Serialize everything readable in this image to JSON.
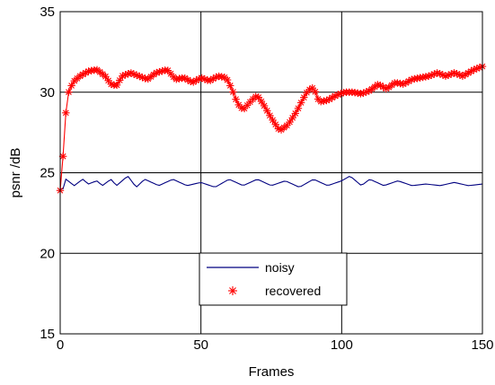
{
  "chart_data": {
    "type": "line",
    "xlabel": "Frames",
    "ylabel": "psnr /dB",
    "xlim": [
      0,
      150
    ],
    "ylim": [
      15,
      35
    ],
    "xticks": [
      0,
      50,
      100,
      150
    ],
    "yticks": [
      15,
      20,
      25,
      30,
      35
    ],
    "grid": true,
    "legend_position": "bottom-center",
    "series": [
      {
        "name": "noisy",
        "color": "#000080",
        "marker": "none",
        "anchors": [
          [
            1,
            24.0
          ],
          [
            2,
            24.6
          ],
          [
            5,
            24.2
          ],
          [
            8,
            24.6
          ],
          [
            10,
            24.3
          ],
          [
            13,
            24.5
          ],
          [
            15,
            24.2
          ],
          [
            18,
            24.6
          ],
          [
            20,
            24.2
          ],
          [
            24,
            24.8
          ],
          [
            27,
            24.1
          ],
          [
            30,
            24.6
          ],
          [
            35,
            24.2
          ],
          [
            40,
            24.6
          ],
          [
            45,
            24.2
          ],
          [
            50,
            24.4
          ],
          [
            55,
            24.1
          ],
          [
            60,
            24.6
          ],
          [
            65,
            24.2
          ],
          [
            70,
            24.6
          ],
          [
            75,
            24.2
          ],
          [
            80,
            24.5
          ],
          [
            85,
            24.1
          ],
          [
            90,
            24.6
          ],
          [
            95,
            24.2
          ],
          [
            100,
            24.5
          ],
          [
            103,
            24.8
          ],
          [
            107,
            24.2
          ],
          [
            110,
            24.6
          ],
          [
            115,
            24.2
          ],
          [
            120,
            24.5
          ],
          [
            125,
            24.2
          ],
          [
            130,
            24.3
          ],
          [
            135,
            24.2
          ],
          [
            140,
            24.4
          ],
          [
            145,
            24.2
          ],
          [
            150,
            24.3
          ]
        ]
      },
      {
        "name": "recovered",
        "color": "#ff0000",
        "marker": "asterisk",
        "anchors": [
          [
            0,
            23.9
          ],
          [
            1,
            26.0
          ],
          [
            2,
            28.7
          ],
          [
            3,
            30.0
          ],
          [
            4,
            30.4
          ],
          [
            5,
            30.7
          ],
          [
            7,
            31.0
          ],
          [
            10,
            31.3
          ],
          [
            13,
            31.4
          ],
          [
            16,
            31.0
          ],
          [
            18,
            30.5
          ],
          [
            20,
            30.4
          ],
          [
            22,
            31.0
          ],
          [
            25,
            31.2
          ],
          [
            28,
            31.0
          ],
          [
            31,
            30.8
          ],
          [
            34,
            31.2
          ],
          [
            38,
            31.4
          ],
          [
            41,
            30.8
          ],
          [
            44,
            30.9
          ],
          [
            47,
            30.6
          ],
          [
            50,
            30.9
          ],
          [
            53,
            30.7
          ],
          [
            56,
            31.0
          ],
          [
            59,
            30.9
          ],
          [
            61,
            30.2
          ],
          [
            63,
            29.3
          ],
          [
            65,
            28.9
          ],
          [
            68,
            29.5
          ],
          [
            70,
            29.8
          ],
          [
            72,
            29.3
          ],
          [
            75,
            28.4
          ],
          [
            78,
            27.6
          ],
          [
            81,
            28.0
          ],
          [
            84,
            28.8
          ],
          [
            86,
            29.5
          ],
          [
            88,
            30.1
          ],
          [
            90,
            30.3
          ],
          [
            92,
            29.4
          ],
          [
            95,
            29.5
          ],
          [
            98,
            29.8
          ],
          [
            101,
            30.0
          ],
          [
            104,
            30.0
          ],
          [
            107,
            29.9
          ],
          [
            110,
            30.1
          ],
          [
            113,
            30.5
          ],
          [
            116,
            30.2
          ],
          [
            119,
            30.6
          ],
          [
            122,
            30.5
          ],
          [
            125,
            30.8
          ],
          [
            128,
            30.9
          ],
          [
            131,
            31.0
          ],
          [
            134,
            31.2
          ],
          [
            137,
            31.0
          ],
          [
            140,
            31.2
          ],
          [
            143,
            31.0
          ],
          [
            147,
            31.4
          ],
          [
            150,
            31.6
          ]
        ]
      }
    ],
    "series_points": 150
  }
}
